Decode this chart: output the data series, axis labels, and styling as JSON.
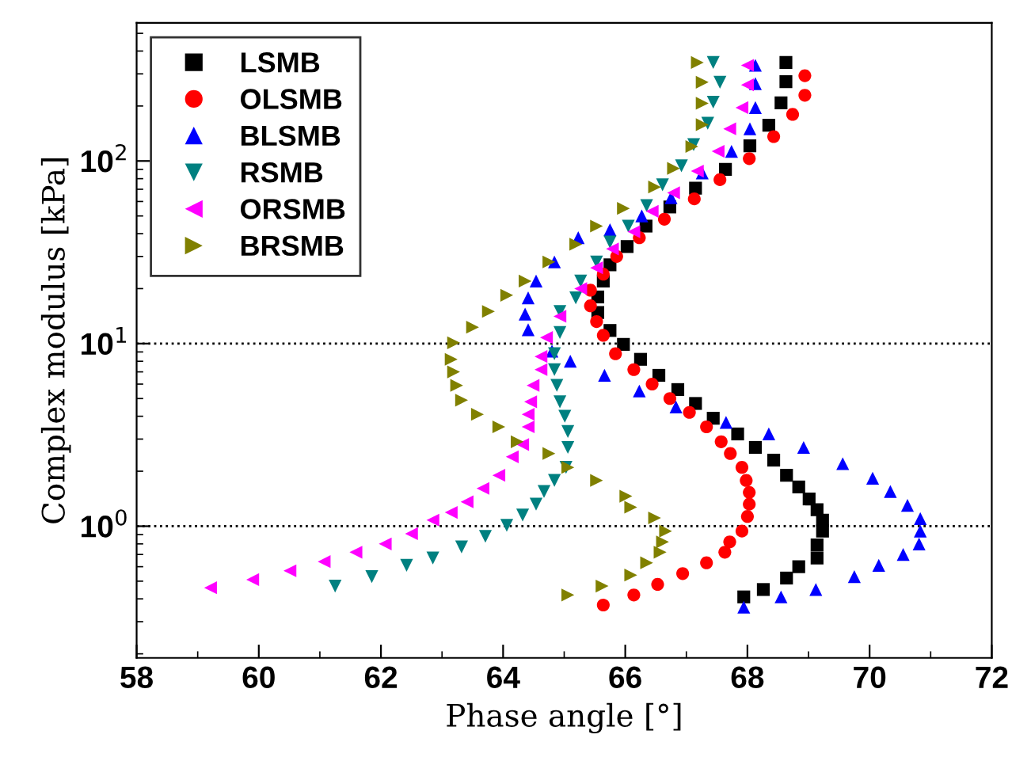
{
  "chart_data": {
    "type": "scatter",
    "xlabel": "Phase angle [°]",
    "ylabel": "Complex modulus [kPa]",
    "log": "y",
    "xlim": [
      58,
      72
    ],
    "xticks": [
      58,
      60,
      62,
      64,
      66,
      68,
      70,
      72
    ],
    "ylim": [
      0.19,
      570
    ],
    "yticks": [
      {
        "value": 1,
        "label": "10$^{0}$"
      },
      {
        "value": 10,
        "label": "10$^{1}$"
      },
      {
        "value": 100,
        "label": "10$^{2}$"
      }
    ],
    "grid": false,
    "legend": "top left",
    "ref_lines": [
      {
        "axis": "y",
        "value": 10,
        "color": "#000000",
        "line_style": "dotted"
      },
      {
        "axis": "y",
        "value": 1,
        "color": "#000000",
        "line_style": "dotted"
      }
    ],
    "series": [
      {
        "name": "LSMB",
        "color": "#000000",
        "marker": "square",
        "x": [
          68.63,
          68.63,
          68.55,
          68.35,
          68.04,
          67.64,
          67.15,
          66.73,
          66.34,
          66.03,
          65.75,
          65.64,
          65.55,
          65.55,
          65.75,
          65.97,
          66.25,
          66.55,
          66.86,
          67.15,
          67.44,
          67.84,
          68.13,
          68.43,
          68.64,
          68.84,
          69.01,
          69.14,
          69.23,
          69.23,
          69.14,
          69.14,
          68.84,
          68.64,
          68.26,
          67.94
        ],
        "values": [
          346,
          272,
          208,
          157,
          121,
          90,
          71,
          56,
          44,
          34,
          27,
          22,
          18,
          14.8,
          11.8,
          9.9,
          8.2,
          6.7,
          5.6,
          4.7,
          3.9,
          3.2,
          2.7,
          2.3,
          1.9,
          1.64,
          1.41,
          1.23,
          1.08,
          0.94,
          0.79,
          0.67,
          0.6,
          0.52,
          0.45,
          0.41
        ]
      },
      {
        "name": "OLSMB",
        "color": "#ff0000",
        "marker": "circle",
        "x": [
          68.94,
          68.94,
          68.74,
          68.43,
          68.03,
          67.55,
          67.13,
          66.64,
          66.23,
          65.86,
          65.64,
          65.43,
          65.43,
          65.53,
          65.64,
          65.84,
          66.14,
          66.44,
          66.73,
          67.05,
          67.33,
          67.57,
          67.72,
          67.91,
          67.98,
          68.03,
          68.03,
          68.0,
          67.91,
          67.71,
          67.63,
          67.33,
          66.94,
          66.53,
          66.14,
          65.64
        ],
        "values": [
          293,
          229,
          180,
          136,
          103,
          79,
          62,
          48,
          38,
          30,
          24,
          19.6,
          16.1,
          13.2,
          11.1,
          8.8,
          7.2,
          6.0,
          5.0,
          4.2,
          3.5,
          2.9,
          2.5,
          2.1,
          1.78,
          1.53,
          1.32,
          1.13,
          0.94,
          0.82,
          0.72,
          0.63,
          0.55,
          0.48,
          0.42,
          0.37
        ]
      },
      {
        "name": "BLSMB",
        "color": "#0000ff",
        "marker": "triangle",
        "x": [
          68.13,
          68.13,
          68.13,
          68.04,
          67.74,
          67.26,
          66.75,
          66.27,
          65.75,
          65.23,
          64.84,
          64.54,
          64.41,
          64.36,
          64.41,
          64.8,
          65.1,
          65.66,
          66.23,
          66.83,
          67.65,
          68.35,
          68.92,
          69.56,
          70.05,
          70.34,
          70.62,
          70.83,
          70.83,
          70.81,
          70.55,
          70.15,
          69.75,
          69.12,
          68.55,
          67.94
        ],
        "values": [
          334,
          265,
          196,
          150,
          113,
          86,
          63,
          50,
          42,
          38,
          28,
          22,
          17.8,
          14.5,
          11.9,
          9.1,
          8.0,
          6.7,
          5.5,
          4.5,
          3.7,
          3.2,
          2.7,
          2.2,
          1.83,
          1.55,
          1.3,
          1.1,
          0.94,
          0.8,
          0.7,
          0.61,
          0.53,
          0.45,
          0.41,
          0.36
        ]
      },
      {
        "name": "RSMB",
        "color": "#008080",
        "marker": "triangle-down",
        "x": [
          67.44,
          67.55,
          67.44,
          67.35,
          67.12,
          66.92,
          66.61,
          66.35,
          66.05,
          65.75,
          65.53,
          65.27,
          65.19,
          64.93,
          64.93,
          64.84,
          64.84,
          64.88,
          64.93,
          65.01,
          65.06,
          65.06,
          65.03,
          64.84,
          64.67,
          64.54,
          64.32,
          64.06,
          63.71,
          63.32,
          62.85,
          62.42,
          61.85,
          61.25
        ],
        "values": [
          346,
          270,
          210,
          161,
          123,
          94,
          74,
          57,
          44,
          36,
          28,
          22,
          17.8,
          15.0,
          11.5,
          8.8,
          7.2,
          5.9,
          4.8,
          4.0,
          3.3,
          2.7,
          2.1,
          1.78,
          1.55,
          1.32,
          1.15,
          1.01,
          0.88,
          0.77,
          0.67,
          0.61,
          0.53,
          0.47
        ]
      },
      {
        "name": "ORSMB",
        "color": "#ff00ff",
        "marker": "triangle-left",
        "x": [
          68.0,
          68.0,
          67.91,
          67.71,
          67.52,
          67.18,
          66.79,
          66.44,
          66.14,
          65.79,
          65.53,
          65.27,
          64.93,
          64.71,
          64.62,
          64.62,
          64.49,
          64.45,
          64.41,
          64.41,
          64.32,
          64.15,
          63.93,
          63.67,
          63.41,
          63.15,
          62.85,
          62.5,
          62.07,
          61.59,
          61.07,
          60.51,
          59.9,
          59.21
        ],
        "values": [
          334,
          261,
          196,
          150,
          113,
          88,
          67,
          53,
          41,
          33,
          26,
          20,
          14.1,
          10.8,
          8.5,
          7.2,
          5.9,
          4.8,
          4.1,
          3.5,
          2.8,
          2.4,
          1.9,
          1.61,
          1.36,
          1.19,
          1.08,
          0.91,
          0.8,
          0.72,
          0.64,
          0.57,
          0.51,
          0.46
        ]
      },
      {
        "name": "BRSMB",
        "color": "#808000",
        "marker": "triangle-right",
        "x": [
          67.18,
          67.26,
          67.26,
          67.26,
          67.09,
          66.79,
          66.48,
          65.97,
          65.53,
          65.19,
          64.75,
          64.36,
          64.06,
          63.76,
          63.5,
          63.19,
          63.15,
          63.19,
          63.24,
          63.32,
          63.58,
          63.93,
          64.23,
          64.75,
          65.06,
          65.53,
          66.01,
          66.09,
          66.48,
          66.66,
          66.61,
          66.57,
          66.35,
          66.09,
          65.62,
          65.06
        ],
        "values": [
          346,
          270,
          207,
          158,
          120,
          91,
          72,
          55,
          44,
          35,
          28,
          22,
          18.4,
          15.0,
          12.3,
          10.1,
          8.2,
          7.0,
          5.9,
          4.9,
          4.1,
          3.5,
          2.9,
          2.5,
          2.1,
          1.78,
          1.46,
          1.27,
          1.11,
          0.94,
          0.82,
          0.72,
          0.63,
          0.54,
          0.47,
          0.42
        ]
      }
    ]
  }
}
